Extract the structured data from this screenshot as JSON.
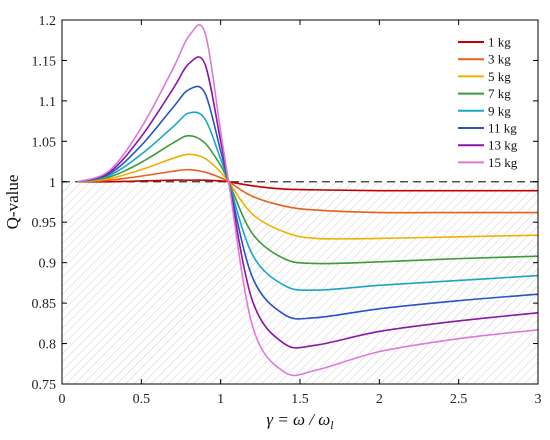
{
  "chart_data": {
    "type": "line",
    "title": "",
    "xlabel": "γ = ω / ω",
    "xlabel_sub": "l",
    "ylabel": "Q-value",
    "xlim": [
      0,
      3
    ],
    "ylim": [
      0.75,
      1.2
    ],
    "x_ticks": [
      "0",
      "0.5",
      "1",
      "1.5",
      "2",
      "2.5",
      "3"
    ],
    "y_ticks": [
      "0.75",
      "0.8",
      "0.85",
      "0.9",
      "0.95",
      "1",
      "1.05",
      "1.1",
      "1.15",
      "1.2"
    ],
    "grid": false,
    "legend_position": "top-right",
    "reference_line": 1,
    "shaded_region": "below y = 1 (hatched)",
    "x": [
      0.1,
      0.3,
      0.5,
      0.7,
      0.8,
      0.9,
      1.0,
      1.05,
      1.2,
      1.4,
      1.6,
      2.0,
      2.5,
      3.0
    ],
    "series": [
      {
        "name": "1 kg",
        "color": "#c00000",
        "values": [
          1.0,
          1.0,
          1.001,
          1.002,
          1.002,
          1.002,
          1.001,
          1.0,
          0.995,
          0.991,
          0.99,
          0.989,
          0.989,
          0.989
        ]
      },
      {
        "name": "3 kg",
        "color": "#e8601c",
        "values": [
          1.0,
          1.002,
          1.007,
          1.013,
          1.015,
          1.012,
          1.005,
          1.0,
          0.982,
          0.97,
          0.965,
          0.962,
          0.962,
          0.962
        ]
      },
      {
        "name": "5 kg",
        "color": "#f0b000",
        "values": [
          1.0,
          1.004,
          1.015,
          1.029,
          1.034,
          1.029,
          1.012,
          1.0,
          0.96,
          0.938,
          0.93,
          0.93,
          0.932,
          0.934
        ]
      },
      {
        "name": "7 kg",
        "color": "#3c9a3c",
        "values": [
          1.0,
          1.006,
          1.024,
          1.048,
          1.057,
          1.048,
          1.02,
          1.0,
          0.936,
          0.905,
          0.899,
          0.901,
          0.905,
          0.908
        ]
      },
      {
        "name": "9 kg",
        "color": "#1aa5c8",
        "values": [
          1.0,
          1.008,
          1.034,
          1.068,
          1.085,
          1.078,
          1.028,
          1.0,
          0.91,
          0.872,
          0.866,
          0.872,
          0.878,
          0.884
        ]
      },
      {
        "name": "11 kg",
        "color": "#2554c7",
        "values": [
          1.0,
          1.01,
          1.045,
          1.092,
          1.114,
          1.11,
          1.038,
          1.0,
          0.882,
          0.836,
          0.832,
          0.843,
          0.853,
          0.861
        ]
      },
      {
        "name": "13 kg",
        "color": "#8b16a8",
        "values": [
          1.0,
          1.012,
          1.056,
          1.115,
          1.146,
          1.146,
          1.05,
          1.0,
          0.853,
          0.8,
          0.798,
          0.815,
          0.828,
          0.838
        ]
      },
      {
        "name": "15 kg",
        "color": "#de7ad6",
        "values": [
          1.0,
          1.014,
          1.067,
          1.14,
          1.18,
          1.185,
          1.062,
          1.0,
          0.822,
          0.765,
          0.767,
          0.79,
          0.806,
          0.817
        ]
      }
    ]
  }
}
